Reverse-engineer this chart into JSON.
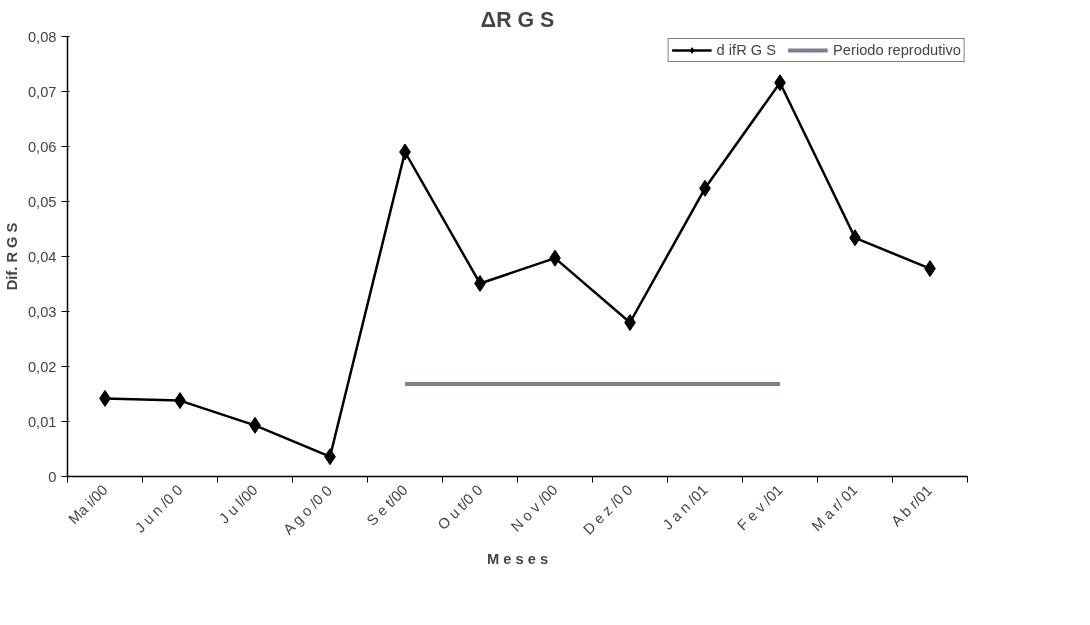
{
  "chart_data": {
    "type": "line",
    "title": "ΔR G S",
    "xlabel": "M e s e s",
    "ylabel": "Dif. R G S",
    "categories": [
      "Ma i/00",
      "J u n /0 0",
      "J u l/00",
      "A g o /0 0",
      "S e t/00",
      "O u t/0 0",
      "N o v /00",
      "D e z /0 0",
      "J a n /01",
      "F e v /01",
      "M a r/ 01",
      "A b r/01"
    ],
    "series": [
      {
        "name": "d ifR G S",
        "color": "#000000",
        "marker": "diamond",
        "values": [
          0.0142,
          0.0138,
          0.0093,
          0.0036,
          0.059,
          0.0351,
          0.0397,
          0.028,
          0.0524,
          0.0716,
          0.0434,
          0.0378
        ]
      },
      {
        "name": "Periodo reprodutivo",
        "color": "#7a8090",
        "marker": "none",
        "values": [
          null,
          null,
          null,
          null,
          0.0168,
          0.0168,
          0.0168,
          0.0168,
          0.0168,
          0.0168,
          null,
          null
        ]
      }
    ],
    "ylim": [
      0,
      0.08
    ],
    "yticks": [
      0,
      {
        "value": 0.01,
        "label": "0,01"
      },
      {
        "value": 0.02,
        "label": "0,02"
      },
      {
        "value": 0.03,
        "label": "0,03"
      },
      {
        "value": 0.04,
        "label": "0,04"
      },
      {
        "value": 0.05,
        "label": "0,05"
      },
      {
        "value": 0.06,
        "label": "0,06"
      },
      {
        "value": 0.07,
        "label": "0,07"
      },
      {
        "value": 0.08,
        "label": "0,08"
      }
    ],
    "grid": false,
    "legend": "top right",
    "line_style": "solid"
  }
}
